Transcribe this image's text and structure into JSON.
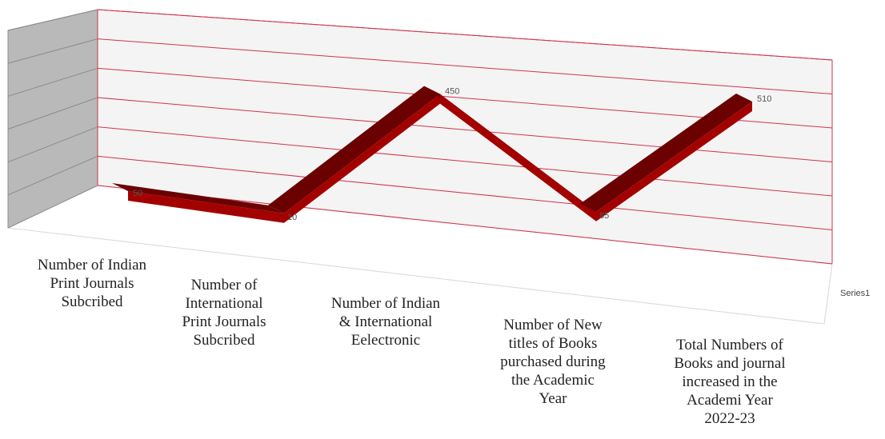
{
  "chart_data": {
    "type": "line",
    "style": "3d-ribbon",
    "categories": [
      "Number of Indian\nPrint  Journals\nSubcribed",
      "Number of\nInternational\nPrint  Journals\nSubcribed",
      "Number of Indian\n& International\nEelectronic",
      "Number of  New\ntitles of Books\npurchased during\nthe Academic\nYear",
      "Total Numbers of\nBooks and journal\nincreased in the\nAcademi Year\n2022-23"
    ],
    "series": [
      {
        "name": "Series1",
        "values": [
          50,
          10,
          450,
          85,
          510
        ],
        "labels": [
          "50",
          "10",
          "450",
          "85",
          "510"
        ]
      }
    ],
    "ylim": [
      0,
      600
    ],
    "gridlines": 6,
    "grid": true,
    "colors": {
      "ribbon": "#a30000",
      "ribbon_dark": "#6b0000",
      "grid": "#d0344a",
      "side_wall": "#b9b9b9",
      "back_wall": "#f4f4f4"
    }
  }
}
